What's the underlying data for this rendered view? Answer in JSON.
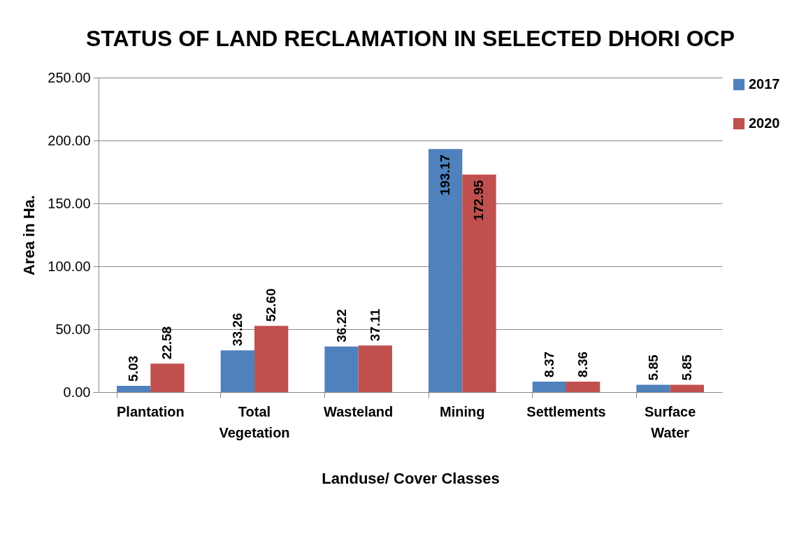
{
  "chart_data": {
    "type": "bar",
    "title": "STATUS OF LAND RECLAMATION IN SELECTED DHORI OCP",
    "xlabel": "Landuse/ Cover Classes",
    "ylabel": "Area in Ha.",
    "categories": [
      "Plantation",
      "Total Vegetation",
      "Wasteland",
      "Mining",
      "Settlements",
      "Surface Water"
    ],
    "series": [
      {
        "name": "2017",
        "color": "#4f81bd",
        "values": [
          5.03,
          33.26,
          36.22,
          193.17,
          8.37,
          5.85
        ],
        "value_labels": [
          "5.03",
          "33.26",
          "36.22",
          "193.17",
          "8.37",
          "5.85"
        ]
      },
      {
        "name": "2020",
        "color": "#c0504d",
        "values": [
          22.58,
          52.6,
          37.11,
          172.95,
          8.36,
          5.85
        ],
        "value_labels": [
          "22.58",
          "52.60",
          "37.11",
          "172.95",
          "8.36",
          "5.85"
        ]
      }
    ],
    "ylim": [
      0,
      250
    ],
    "yticks": [
      {
        "value": 0,
        "label": "0.00"
      },
      {
        "value": 50,
        "label": "50.00"
      },
      {
        "value": 100,
        "label": "100.00"
      },
      {
        "value": 150,
        "label": "150.00"
      },
      {
        "value": 200,
        "label": "200.00"
      },
      {
        "value": 250,
        "label": "250.00"
      }
    ],
    "grid": "y",
    "legend": "right"
  }
}
